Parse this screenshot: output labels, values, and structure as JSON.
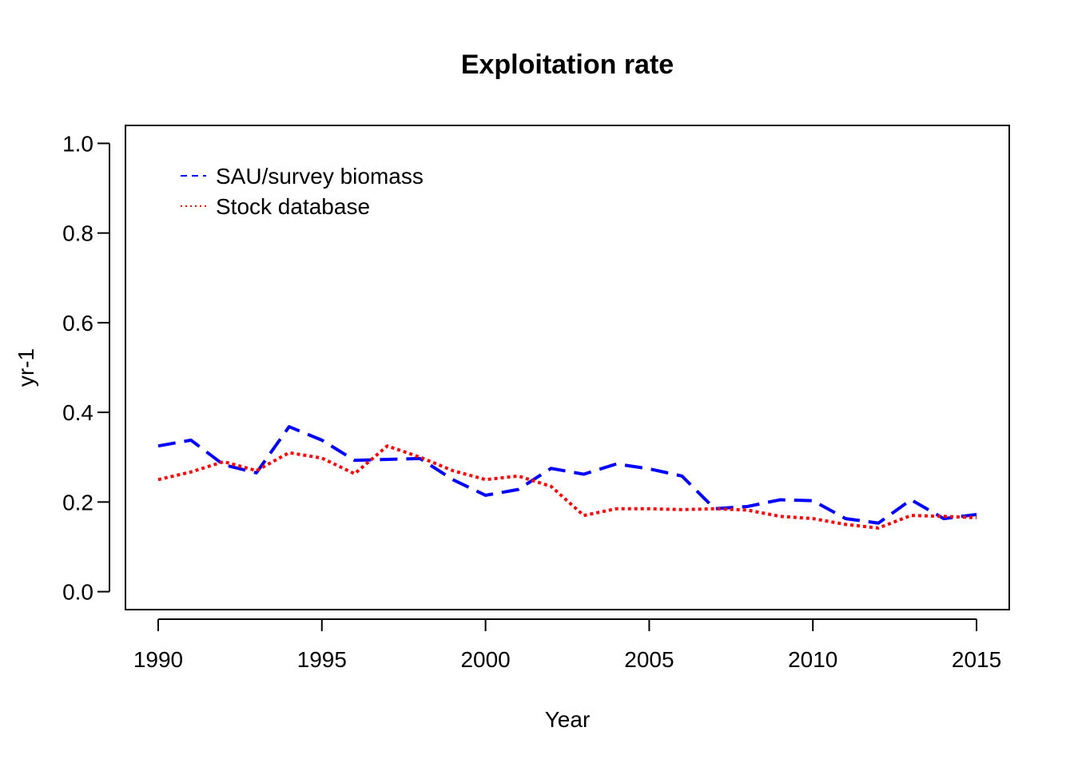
{
  "chart_data": {
    "type": "line",
    "title": "Exploitation rate",
    "xlabel": "Year",
    "ylabel": "yr-1",
    "xlim": [
      1989,
      2016
    ],
    "ylim": [
      -0.04,
      1.04
    ],
    "xticks": [
      1990,
      1995,
      2000,
      2005,
      2010,
      2015
    ],
    "yticks": [
      0.0,
      0.2,
      0.4,
      0.6,
      0.8,
      1.0
    ],
    "ytick_labels": [
      "0.0",
      "0.2",
      "0.4",
      "0.6",
      "0.8",
      "1.0"
    ],
    "grid": false,
    "legend_position": "top-left",
    "x": [
      1990,
      1991,
      1992,
      1993,
      1994,
      1995,
      1996,
      1997,
      1998,
      1999,
      2000,
      2001,
      2002,
      2003,
      2004,
      2005,
      2006,
      2007,
      2008,
      2009,
      2010,
      2011,
      2012,
      2013,
      2014,
      2015
    ],
    "series": [
      {
        "name": "SAU/survey biomass",
        "color": "#0000ff",
        "style": "dashed",
        "values": [
          0.325,
          0.338,
          0.283,
          0.265,
          0.368,
          0.338,
          0.293,
          0.295,
          0.297,
          0.25,
          0.215,
          0.228,
          0.275,
          0.262,
          0.285,
          0.274,
          0.258,
          0.185,
          0.19,
          0.205,
          0.203,
          0.163,
          0.153,
          0.205,
          0.163,
          0.172
        ]
      },
      {
        "name": "Stock database",
        "color": "#ff0000",
        "style": "dotted",
        "values": [
          0.25,
          0.267,
          0.29,
          0.27,
          0.31,
          0.298,
          0.263,
          0.325,
          0.3,
          0.27,
          0.25,
          0.258,
          0.235,
          0.17,
          0.185,
          0.185,
          0.183,
          0.185,
          0.182,
          0.168,
          0.163,
          0.15,
          0.142,
          0.17,
          0.168,
          0.165
        ]
      }
    ]
  }
}
